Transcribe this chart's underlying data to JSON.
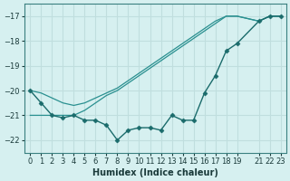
{
  "xlabel": "Humidex (Indice chaleur)",
  "ylabel": "",
  "bg_color": "#d6f0f0",
  "grid_color": "#c0dede",
  "line_color": "#1a6b6b",
  "line_color2": "#2a9090",
  "x_data": [
    0,
    1,
    2,
    3,
    4,
    5,
    6,
    7,
    8,
    9,
    10,
    11,
    12,
    13,
    14,
    15,
    16,
    17,
    18,
    19,
    21,
    22,
    23
  ],
  "y_main": [
    -20.0,
    -20.5,
    -21.0,
    -21.1,
    -21.0,
    -21.2,
    -21.2,
    -21.4,
    -22.0,
    -21.6,
    -21.5,
    -21.5,
    -21.6,
    -21.0,
    -21.2,
    -21.2,
    -20.1,
    -19.4,
    -18.4,
    -18.1,
    -17.2,
    -17.0,
    -17.0
  ],
  "y_line1": [
    -21.0,
    -21.0,
    -21.0,
    -21.0,
    -21.0,
    -20.8,
    -20.5,
    -20.2,
    -20.0,
    -19.7,
    -19.4,
    -19.1,
    -18.8,
    -18.5,
    -18.2,
    -17.9,
    -17.6,
    -17.3,
    -17.0,
    -17.0,
    -17.2,
    -17.0,
    -17.0
  ],
  "y_line2": [
    -20.0,
    -20.1,
    -20.3,
    -20.5,
    -20.6,
    -20.5,
    -20.3,
    -20.1,
    -19.9,
    -19.6,
    -19.3,
    -19.0,
    -18.7,
    -18.4,
    -18.1,
    -17.8,
    -17.5,
    -17.2,
    -17.0,
    -17.0,
    -17.2,
    -17.0,
    -17.0
  ],
  "xlim": [
    -0.5,
    23.5
  ],
  "ylim": [
    -22.5,
    -16.5
  ],
  "yticks": [
    -17,
    -18,
    -19,
    -20,
    -21,
    -22
  ],
  "xticks": [
    0,
    1,
    2,
    3,
    4,
    5,
    6,
    7,
    8,
    9,
    10,
    11,
    12,
    13,
    14,
    15,
    16,
    17,
    18,
    19,
    21,
    22,
    23
  ]
}
